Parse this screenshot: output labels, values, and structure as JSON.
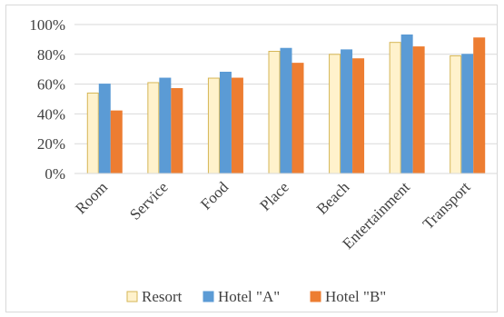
{
  "chart_data": {
    "type": "bar",
    "categories": [
      "Room",
      "Service",
      "Food",
      "Place",
      "Beach",
      "Entertainment",
      "Transport"
    ],
    "series": [
      {
        "name": "Resort",
        "values": [
          54,
          61,
          64,
          82,
          80,
          88,
          79
        ],
        "color": "#fff2cc",
        "stroke": "#d6b656"
      },
      {
        "name": "Hotel \"A\"",
        "values": [
          60,
          64,
          68,
          84,
          83,
          93,
          80
        ],
        "color": "#5b9bd5",
        "stroke": "#5b9bd5"
      },
      {
        "name": "Hotel \"B\"",
        "values": [
          42,
          57,
          64,
          74,
          77,
          85,
          91
        ],
        "color": "#ed7d31",
        "stroke": "#ed7d31"
      }
    ],
    "ylim": [
      0,
      100
    ],
    "yticks": [
      "0%",
      "20%",
      "40%",
      "60%",
      "80%",
      "100%"
    ],
    "grid": true,
    "legend": "bottom",
    "title": "",
    "xlabel": "",
    "ylabel": ""
  }
}
